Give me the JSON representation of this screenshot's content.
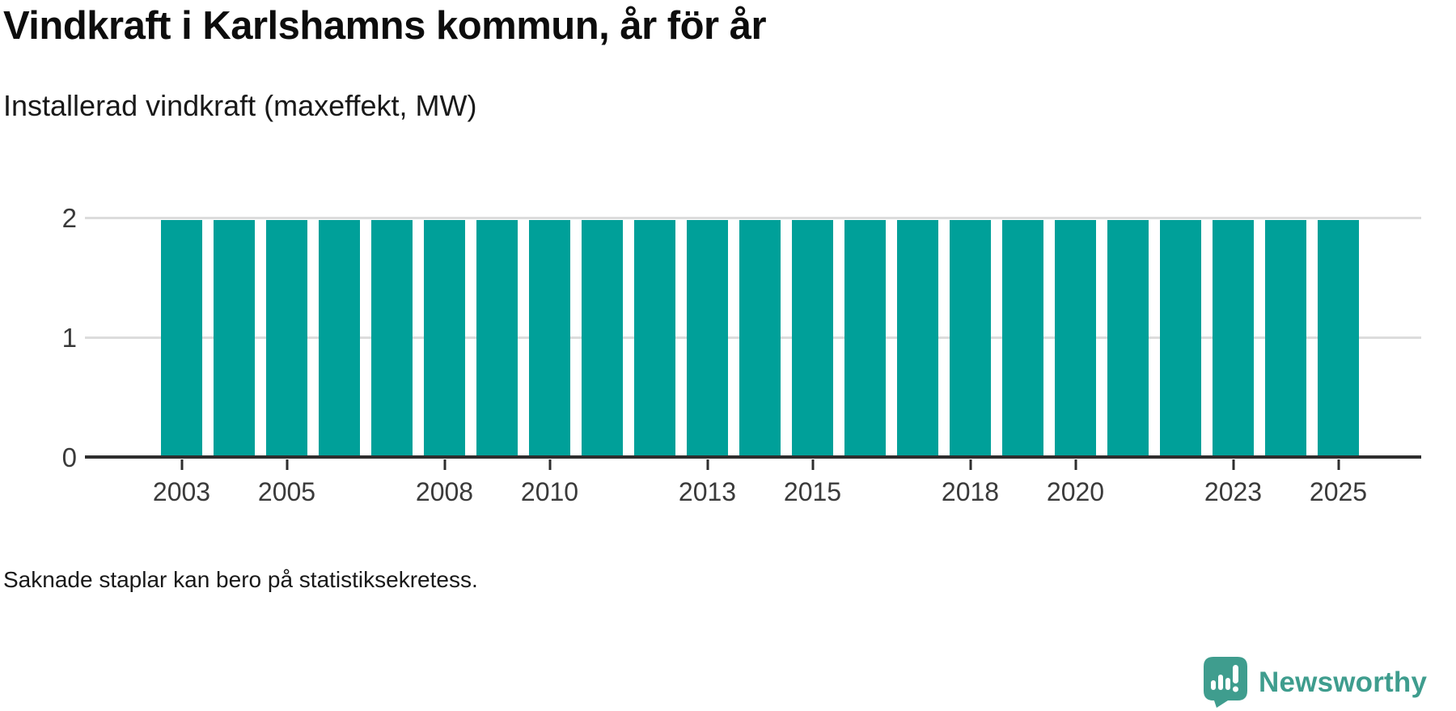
{
  "title": "Vindkraft i Karlshamns kommun, år för år",
  "subtitle": "Installerad vindkraft (maxeffekt, MW)",
  "footnote": "Saknade staplar kan bero på statistiksekretess.",
  "branding": {
    "name": "Newsworthy",
    "icon": "newsworthy-speech-bubble-barchart-icon",
    "color": "#3f9d8e"
  },
  "colors": {
    "bar": "#00a099",
    "axis": "#2e2e2e",
    "gridline": "#dcdcdc",
    "tick_label": "#3a3a3a",
    "title_text": "#0d0d0d",
    "body_text": "#191919"
  },
  "chart_data": {
    "type": "bar",
    "title": "Vindkraft i Karlshamns kommun, år för år",
    "subtitle": "Installerad vindkraft (maxeffekt, MW)",
    "x": [
      2003,
      2004,
      2005,
      2006,
      2007,
      2008,
      2009,
      2010,
      2011,
      2012,
      2013,
      2014,
      2015,
      2016,
      2017,
      2018,
      2019,
      2020,
      2021,
      2022,
      2023,
      2024,
      2025
    ],
    "values": [
      1.98,
      1.98,
      1.98,
      1.98,
      1.98,
      1.98,
      1.98,
      1.98,
      1.98,
      1.98,
      1.98,
      1.98,
      1.98,
      1.98,
      1.98,
      1.98,
      1.98,
      1.98,
      1.98,
      1.98,
      1.98,
      1.98,
      1.98
    ],
    "xlabel": "",
    "ylabel": "",
    "ylim": [
      0,
      2.4
    ],
    "yticks": [
      0,
      1,
      2
    ],
    "xtick_labels": [
      2003,
      2005,
      2008,
      2010,
      2013,
      2015,
      2018,
      2020,
      2023,
      2025
    ],
    "grid": "horizontal",
    "legend": "none",
    "bar_color": "#00a099"
  }
}
